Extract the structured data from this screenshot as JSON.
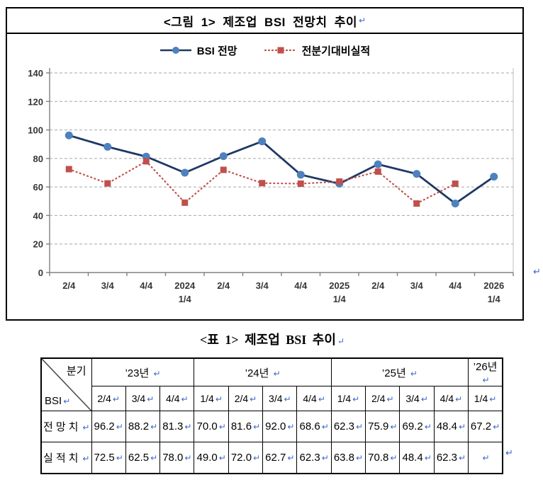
{
  "figure": {
    "title": "<그림 1> 제조업 BSI 전망치 추이"
  },
  "chart_data": {
    "type": "line",
    "title": "<그림 1> 제조업 BSI 전망치 추이",
    "categories": [
      [
        "2/4"
      ],
      [
        "3/4"
      ],
      [
        "4/4"
      ],
      [
        "2024",
        "1/4"
      ],
      [
        "2/4"
      ],
      [
        "3/4"
      ],
      [
        "4/4"
      ],
      [
        "2025",
        "1/4"
      ],
      [
        "2/4"
      ],
      [
        "3/4"
      ],
      [
        "4/4"
      ],
      [
        "2026",
        "1/4"
      ]
    ],
    "series": [
      {
        "name": "BSI 전망",
        "marker": "circle",
        "style": "solid",
        "line_color": "#1F3864",
        "marker_color": "#4F81BD",
        "values": [
          96.2,
          88.2,
          81.3,
          70.0,
          81.6,
          92.0,
          68.6,
          62.3,
          75.9,
          69.2,
          48.4,
          67.2
        ]
      },
      {
        "name": "전분기대비실적",
        "marker": "square",
        "style": "dotted",
        "line_color": "#C0504D",
        "marker_color": "#C0504D",
        "values": [
          72.5,
          62.5,
          78.0,
          49.0,
          72.0,
          62.7,
          62.3,
          63.8,
          70.8,
          48.4,
          62.3,
          null
        ]
      }
    ],
    "ylim": [
      0,
      140
    ],
    "yticks": [
      0,
      20,
      40,
      60,
      80,
      100,
      120,
      140
    ],
    "grid": true,
    "grid_color": "#A6A6A6",
    "axis_color": "#808080",
    "legend_position": "top"
  },
  "table": {
    "title": "<표 1> 제조업 BSI 추이",
    "corner": {
      "top_right": "분기",
      "bottom_left": "BSI"
    },
    "year_groups": [
      {
        "label": "’23년",
        "span": 3
      },
      {
        "label": "’24년",
        "span": 4
      },
      {
        "label": "’25년",
        "span": 4
      },
      {
        "label": "’26년",
        "span": 1
      }
    ],
    "quarters": [
      "2/4",
      "3/4",
      "4/4",
      "1/4",
      "2/4",
      "3/4",
      "4/4",
      "1/4",
      "2/4",
      "3/4",
      "4/4",
      "1/4"
    ],
    "rows": [
      {
        "label": "전망치",
        "values": [
          "96.2",
          "88.2",
          "81.3",
          "70.0",
          "81.6",
          "92.0",
          "68.6",
          "62.3",
          "75.9",
          "69.2",
          "48.4",
          "67.2"
        ]
      },
      {
        "label": "실적치",
        "values": [
          "72.5",
          "62.5",
          "78.0",
          "49.0",
          "72.0",
          "62.7",
          "62.3",
          "63.8",
          "70.8",
          "48.4",
          "62.3",
          ""
        ]
      }
    ]
  },
  "marks": {
    "return_char": "↵",
    "color": "#3A66C9"
  }
}
